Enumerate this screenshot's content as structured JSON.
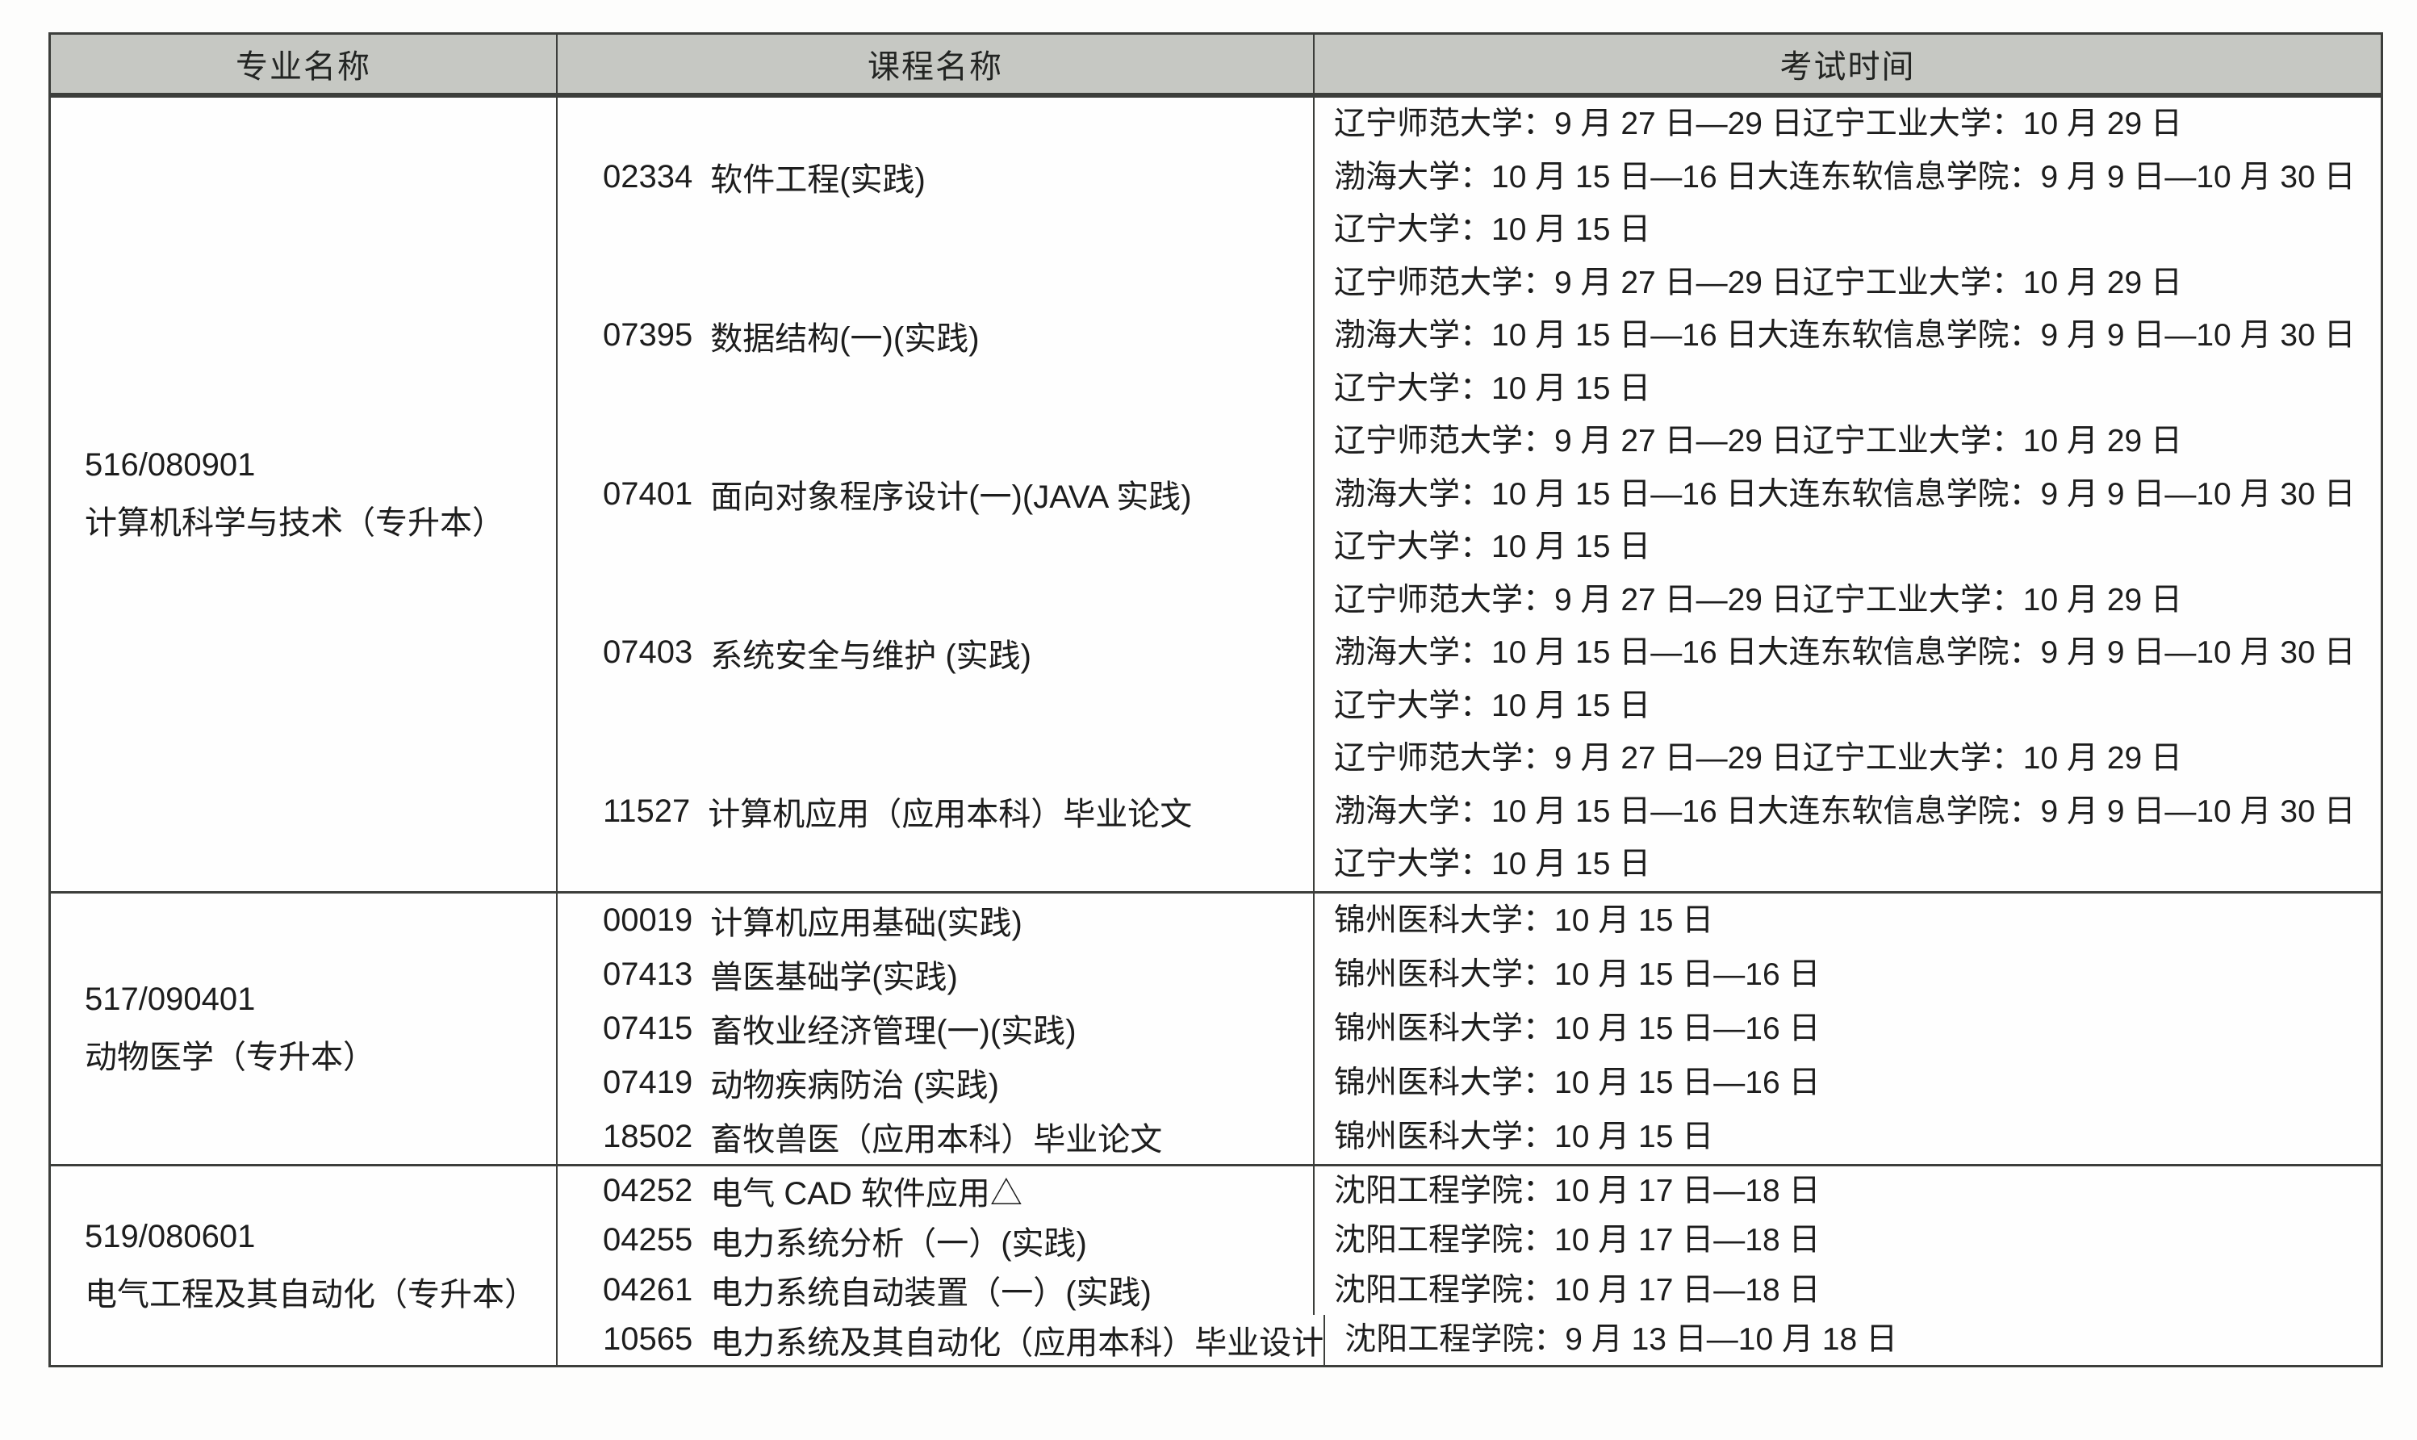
{
  "table": {
    "headers": {
      "major": "专业名称",
      "course": "课程名称",
      "time": "考试时间"
    },
    "sections": [
      {
        "major_code": "516/080901",
        "major_name": "计算机科学与技术（专升本）",
        "courses": [
          {
            "code": "02334",
            "name": "软件工程(实践)",
            "times": [
              "辽宁师范大学：9 月 27 日—29 日辽宁工业大学：10 月 29 日",
              "渤海大学：10 月 15 日—16 日大连东软信息学院：9 月 9 日—10 月 30 日",
              "辽宁大学：10 月 15 日"
            ]
          },
          {
            "code": "07395",
            "name": "数据结构(一)(实践)",
            "times": [
              "辽宁师范大学：9 月 27 日—29 日辽宁工业大学：10 月 29 日",
              "渤海大学：10 月 15 日—16 日大连东软信息学院：9 月 9 日—10 月 30 日",
              "辽宁大学：10 月 15 日"
            ]
          },
          {
            "code": "07401",
            "name": "面向对象程序设计(一)(JAVA 实践)",
            "times": [
              "辽宁师范大学：9 月 27 日—29 日辽宁工业大学：10 月 29 日",
              "渤海大学：10 月 15 日—16 日大连东软信息学院：9 月 9 日—10 月 30 日",
              "辽宁大学：10 月 15 日"
            ]
          },
          {
            "code": "07403",
            "name": "系统安全与维护 (实践)",
            "times": [
              "辽宁师范大学：9 月 27 日—29 日辽宁工业大学：10 月 29 日",
              "渤海大学：10 月 15 日—16 日大连东软信息学院：9 月 9 日—10 月 30 日",
              "辽宁大学：10 月 15 日"
            ]
          },
          {
            "code": "11527",
            "name": "计算机应用（应用本科）毕业论文",
            "times": [
              "辽宁师范大学：9 月 27 日—29 日辽宁工业大学：10 月 29 日",
              "渤海大学：10 月 15 日—16 日大连东软信息学院：9 月 9 日—10 月 30 日",
              "辽宁大学：10 月 15 日"
            ]
          }
        ]
      },
      {
        "major_code": "517/090401",
        "major_name": "动物医学（专升本）",
        "courses": [
          {
            "code": "00019",
            "name": "计算机应用基础(实践)",
            "times": [
              "锦州医科大学：10 月 15 日"
            ]
          },
          {
            "code": "07413",
            "name": "兽医基础学(实践)",
            "times": [
              "锦州医科大学：10 月 15 日—16 日"
            ]
          },
          {
            "code": "07415",
            "name": "畜牧业经济管理(一)(实践)",
            "times": [
              "锦州医科大学：10 月 15 日—16 日"
            ]
          },
          {
            "code": "07419",
            "name": "动物疾病防治 (实践)",
            "times": [
              "锦州医科大学：10 月 15 日—16 日"
            ]
          },
          {
            "code": "18502",
            "name": "畜牧兽医（应用本科）毕业论文",
            "times": [
              "锦州医科大学：10 月 15 日"
            ]
          }
        ]
      },
      {
        "major_code": "519/080601",
        "major_name": "电气工程及其自动化（专升本）",
        "courses": [
          {
            "code": "04252",
            "name": "电气 CAD 软件应用△",
            "times": [
              "沈阳工程学院：10 月 17 日—18 日"
            ]
          },
          {
            "code": "04255",
            "name": "电力系统分析（一）(实践)",
            "times": [
              "沈阳工程学院：10 月 17 日—18 日"
            ]
          },
          {
            "code": "04261",
            "name": "电力系统自动装置（一）(实践)",
            "times": [
              "沈阳工程学院：10 月 17 日—18 日"
            ]
          },
          {
            "code": "10565",
            "name": "电力系统及其自动化（应用本科）毕业设计",
            "times": [
              "沈阳工程学院：9 月 13 日—10 月 18 日"
            ]
          }
        ]
      }
    ]
  },
  "colors": {
    "header_bg": "#c6c8c3",
    "border": "#3c3e3b",
    "text": "#1d1d1d"
  }
}
